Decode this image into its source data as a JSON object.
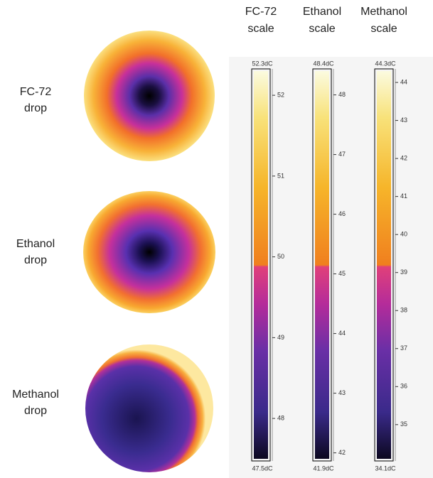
{
  "drops": [
    {
      "label": [
        "FC-72",
        "drop"
      ]
    },
    {
      "label": [
        "Ethanol",
        "drop"
      ]
    },
    {
      "label": [
        "Methanol",
        "drop"
      ]
    }
  ],
  "scales": [
    {
      "title": [
        "FC-72",
        "scale"
      ],
      "max": {
        "value": 52.3,
        "label": "52.3dC"
      },
      "min": {
        "value": 47.5,
        "label": "47.5dC"
      },
      "ticks": [
        52,
        51,
        50,
        49,
        48
      ]
    },
    {
      "title": [
        "Ethanol",
        "scale"
      ],
      "max": {
        "value": 48.4,
        "label": "48.4dC"
      },
      "min": {
        "value": 41.9,
        "label": "41.9dC"
      },
      "ticks": [
        48,
        47,
        46,
        45,
        44,
        43,
        42
      ]
    },
    {
      "title": [
        "Methanol",
        "scale"
      ],
      "max": {
        "value": 44.3,
        "label": "44.3dC"
      },
      "min": {
        "value": 34.1,
        "label": "34.1dC"
      },
      "ticks": [
        44,
        43,
        42,
        41,
        40,
        39,
        38,
        37,
        36,
        35
      ]
    }
  ]
}
